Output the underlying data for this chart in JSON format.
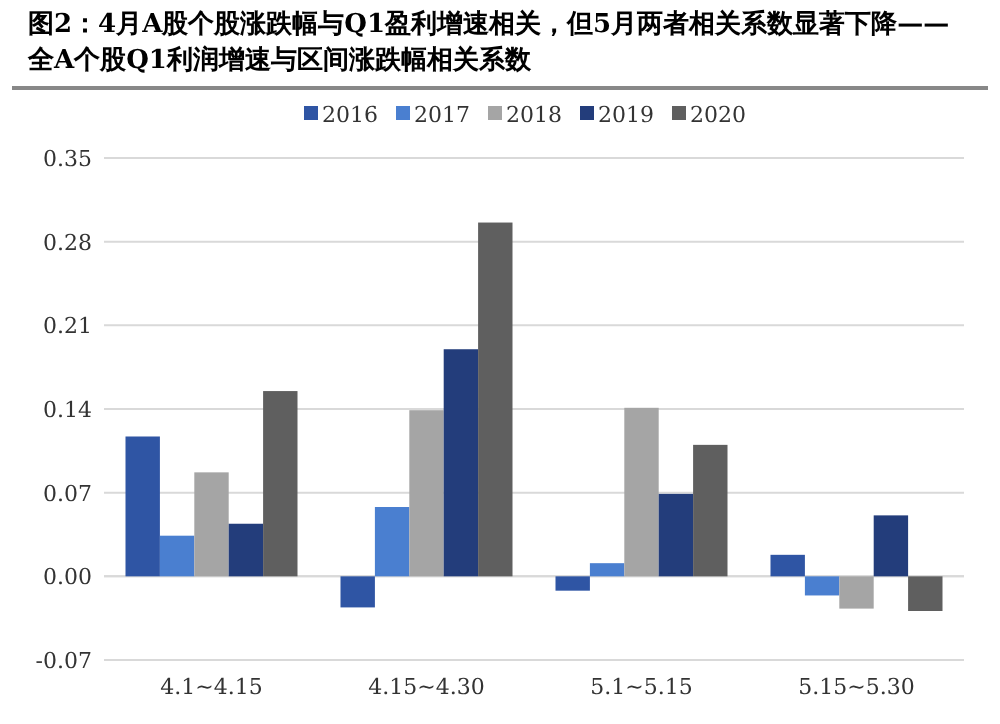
{
  "chart_data": {
    "type": "bar",
    "title": "图2：4月A股个股涨跌幅与Q1盈利增速相关，但5月两者相关系数显著下降——全A个股Q1利润增速与区间涨跌幅相关系数",
    "categories": [
      "4.1~4.15",
      "4.15~4.30",
      "5.1~5.15",
      "5.15~5.30"
    ],
    "series": [
      {
        "name": "2016",
        "color": "#2f55a4",
        "values": [
          0.117,
          -0.026,
          -0.012,
          0.018
        ]
      },
      {
        "name": "2017",
        "color": "#4a7fd0",
        "values": [
          0.034,
          0.058,
          0.011,
          -0.016
        ]
      },
      {
        "name": "2018",
        "color": "#a5a5a5",
        "values": [
          0.087,
          0.139,
          0.141,
          -0.027
        ]
      },
      {
        "name": "2019",
        "color": "#233d7b",
        "values": [
          0.044,
          0.19,
          0.069,
          0.051
        ]
      },
      {
        "name": "2020",
        "color": "#5f5f5f",
        "values": [
          0.155,
          0.296,
          0.11,
          -0.029
        ]
      }
    ],
    "ylim": [
      -0.07,
      0.35
    ],
    "yticks": [
      {
        "value": -0.07,
        "label": "-0.07"
      },
      {
        "value": 0,
        "label": "0.00"
      },
      {
        "value": 0.07,
        "label": "0.07"
      },
      {
        "value": 0.14,
        "label": "0.14"
      },
      {
        "value": 0.21,
        "label": "0.21"
      },
      {
        "value": 0.28,
        "label": "0.28"
      },
      {
        "value": 0.35,
        "label": "0.35"
      }
    ],
    "grid": "y",
    "legend": "top"
  }
}
